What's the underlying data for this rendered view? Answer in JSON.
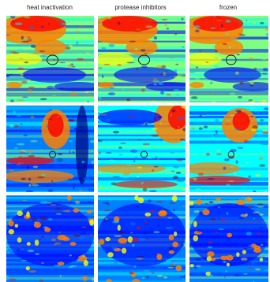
{
  "columns": [
    {
      "title": "heat inactivation"
    },
    {
      "title": "protease inhibitors"
    },
    {
      "title": "frozen"
    }
  ],
  "rows": [
    {
      "panels": [
        {
          "pattern": "row1",
          "marker": true
        },
        {
          "pattern": "row1",
          "marker": true
        },
        {
          "pattern": "row1",
          "marker": true
        }
      ]
    },
    {
      "panels": [
        {
          "pattern": "row2a",
          "marker": true
        },
        {
          "pattern": "row2b",
          "marker": true
        },
        {
          "pattern": "row2c",
          "marker": true
        }
      ]
    },
    {
      "panels": [
        {
          "pattern": "row3",
          "marker": false
        },
        {
          "pattern": "row3",
          "marker": false
        },
        {
          "pattern": "row3",
          "marker": false
        }
      ]
    }
  ],
  "colormap": [
    "#00007f",
    "#0000ff",
    "#007fff",
    "#00ffff",
    "#7fff7f",
    "#ffff00",
    "#ff7f00",
    "#ff0000",
    "#7f0000"
  ]
}
